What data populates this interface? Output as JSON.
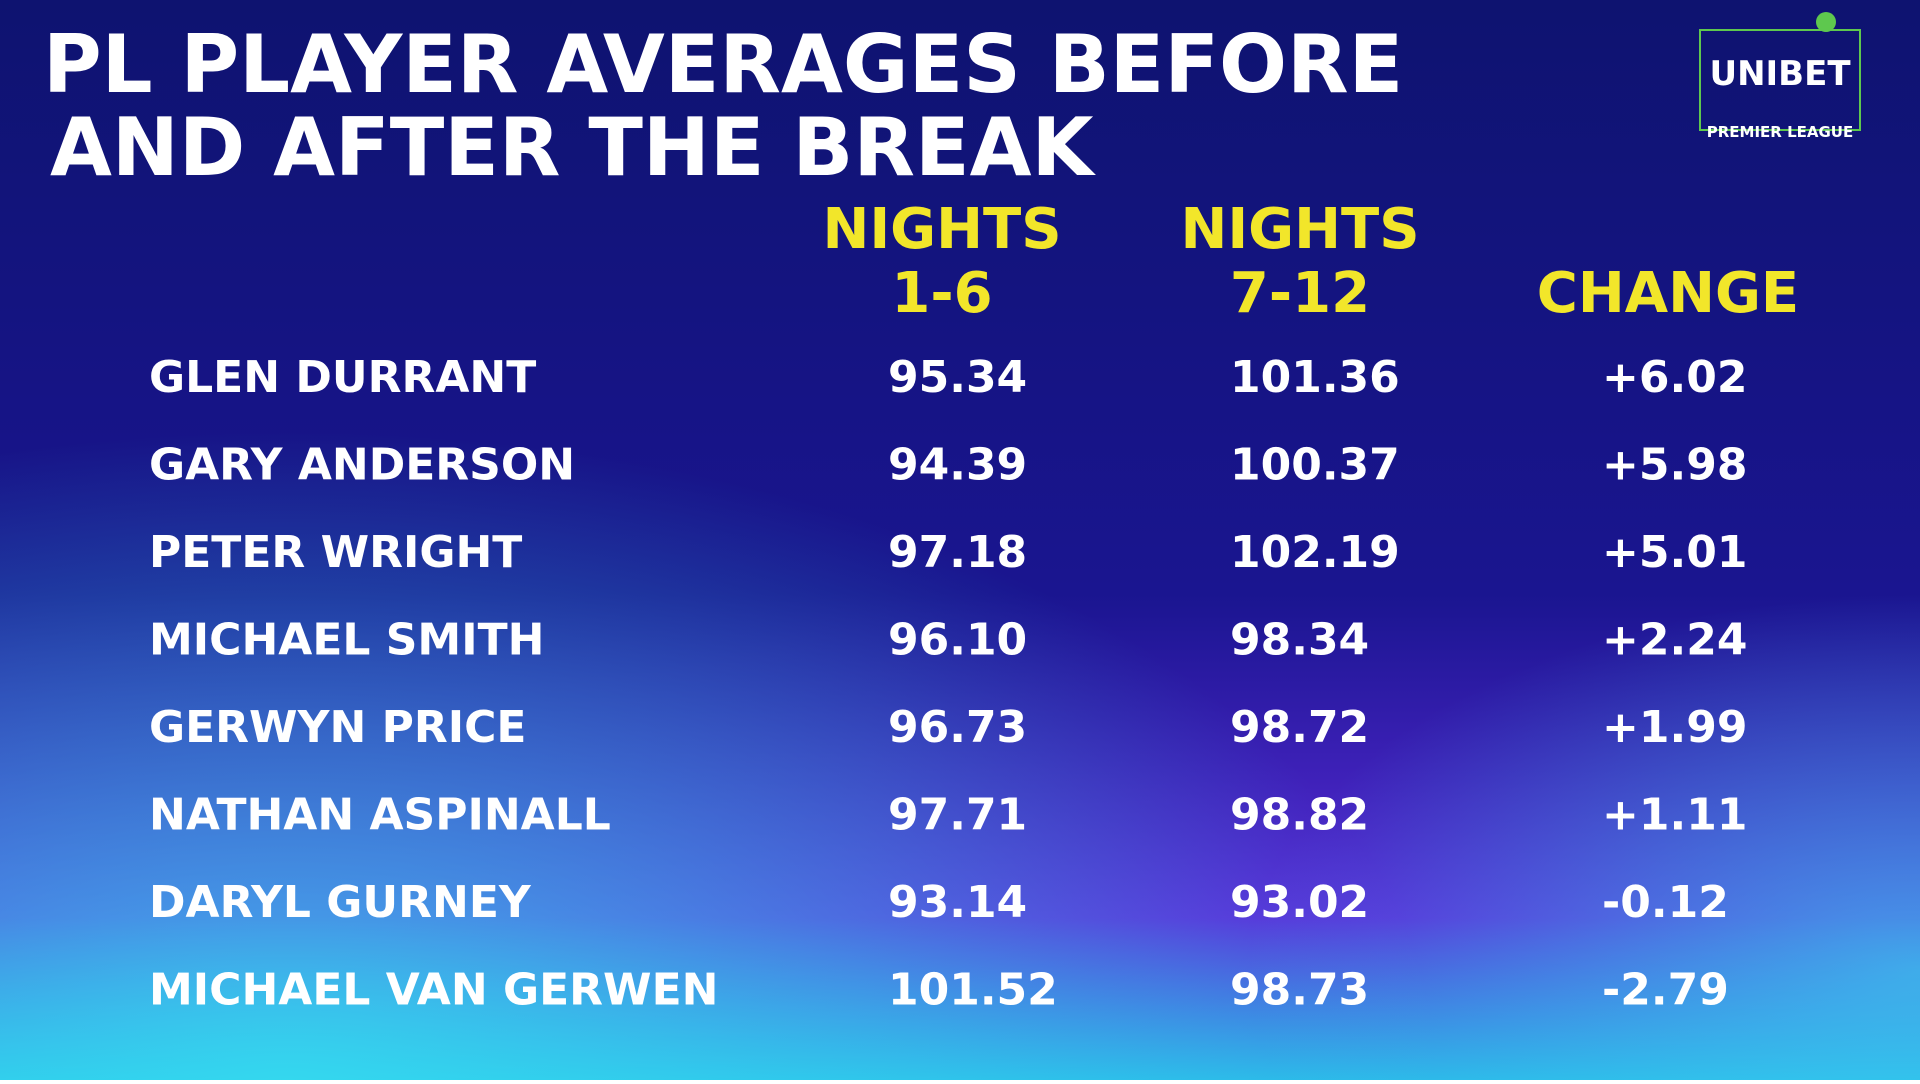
{
  "title": [
    "PL PLAYER AVERAGES BEFORE",
    "AND AFTER THE BREAK"
  ],
  "logo": {
    "brand": "UNIBET",
    "subtitle": "PREMIER LEAGUE"
  },
  "table": {
    "columns": [
      [
        "NIGHTS",
        "1-6"
      ],
      [
        "NIGHTS",
        "7-12"
      ],
      [
        "CHANGE"
      ]
    ],
    "rows": [
      [
        "GLEN DURRANT",
        "95.34",
        "101.36",
        "+6.02"
      ],
      [
        "GARY ANDERSON",
        "94.39",
        "100.37",
        "+5.98"
      ],
      [
        "PETER WRIGHT",
        "97.18",
        "102.19",
        "+5.01"
      ],
      [
        "MICHAEL SMITH",
        "96.10",
        "98.34",
        "+2.24"
      ],
      [
        "GERWYN PRICE",
        "96.73",
        "98.72",
        "+1.99"
      ],
      [
        "NATHAN ASPINALL",
        "97.71",
        "98.82",
        "+1.11"
      ],
      [
        "DARYL GURNEY",
        "93.14",
        "93.02",
        "-0.12"
      ],
      [
        "MICHAEL VAN GERWEN",
        "101.52",
        "98.73",
        "-2.79"
      ]
    ]
  }
}
